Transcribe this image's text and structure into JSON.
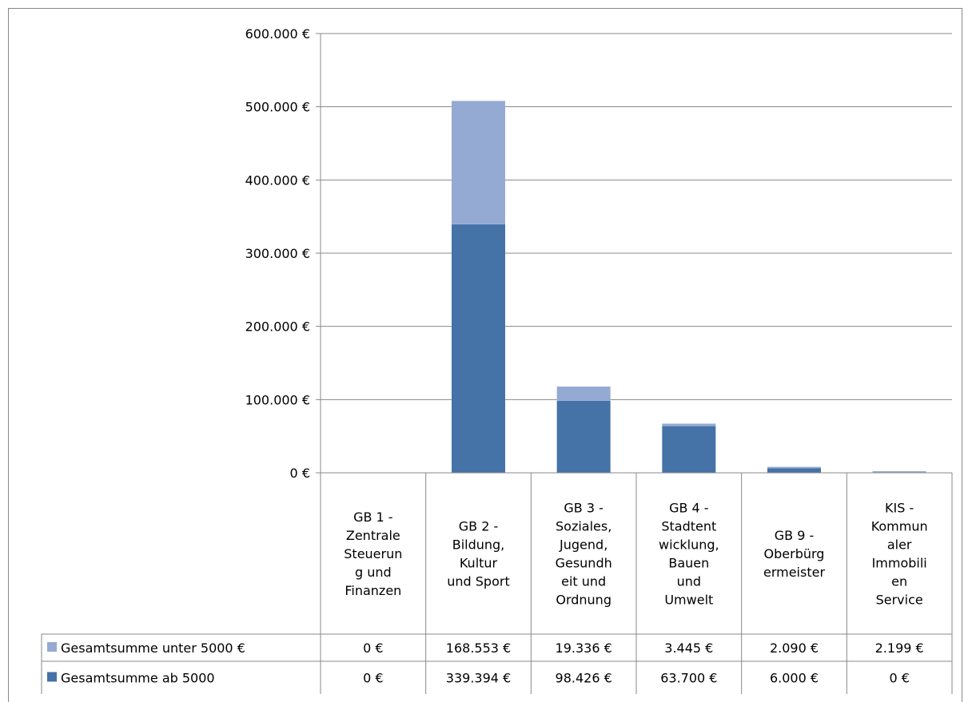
{
  "chart_data": {
    "type": "bar",
    "stacked": true,
    "categories": [
      "GB 1 - Zentrale Steuerung und Finanzen",
      "GB 2 - Bildung, Kultur und Sport",
      "GB 3 - Soziales, Jugend, Gesundheit und Ordnung",
      "GB 4 - Stadtentwicklung, Bauen und Umwelt",
      "GB 9 - Oberbürgermeister",
      "KIS - Kommunaler Immobilien Service"
    ],
    "category_lines": [
      [
        "GB 1 -",
        "Zentrale",
        "Steuerun",
        "g und",
        "Finanzen"
      ],
      [
        "GB 2 -",
        "Bildung,",
        "Kultur",
        "und Sport"
      ],
      [
        "GB 3 -",
        "Soziales,",
        "Jugend,",
        "Gesundh",
        "eit und",
        "Ordnung"
      ],
      [
        "GB 4 -",
        "Stadtent",
        "wicklung,",
        "Bauen",
        "und",
        "Umwelt"
      ],
      [
        "GB 9 -",
        "Oberbürg",
        "ermeister"
      ],
      [
        "KIS -",
        "Kommun",
        "aler",
        "Immobili",
        "en",
        "Service"
      ]
    ],
    "series": [
      {
        "name": "Gesamtsumme ab 5000",
        "color": "#4572A7",
        "values": [
          0,
          339394,
          98426,
          63700,
          6000,
          0
        ],
        "labels": [
          "0 €",
          "339.394 €",
          "98.426 €",
          "63.700 €",
          "6.000 €",
          "0 €"
        ]
      },
      {
        "name": "Gesamtsumme unter 5000 €",
        "color": "#95AAD2",
        "values": [
          0,
          168553,
          19336,
          3445,
          2090,
          2199
        ],
        "labels": [
          "0 €",
          "168.553 €",
          "19.336 €",
          "3.445 €",
          "2.090 €",
          "2.199 €"
        ]
      }
    ],
    "ylim": [
      0,
      600000
    ],
    "yticks": [
      0,
      100000,
      200000,
      300000,
      400000,
      500000,
      600000
    ],
    "ytick_labels": [
      "0 €",
      "100.000 €",
      "200.000 €",
      "300.000 €",
      "400.000 €",
      "500.000 €",
      "600.000 €"
    ],
    "grid": true,
    "legend": "data-table",
    "title": "",
    "xlabel": "",
    "ylabel": ""
  }
}
